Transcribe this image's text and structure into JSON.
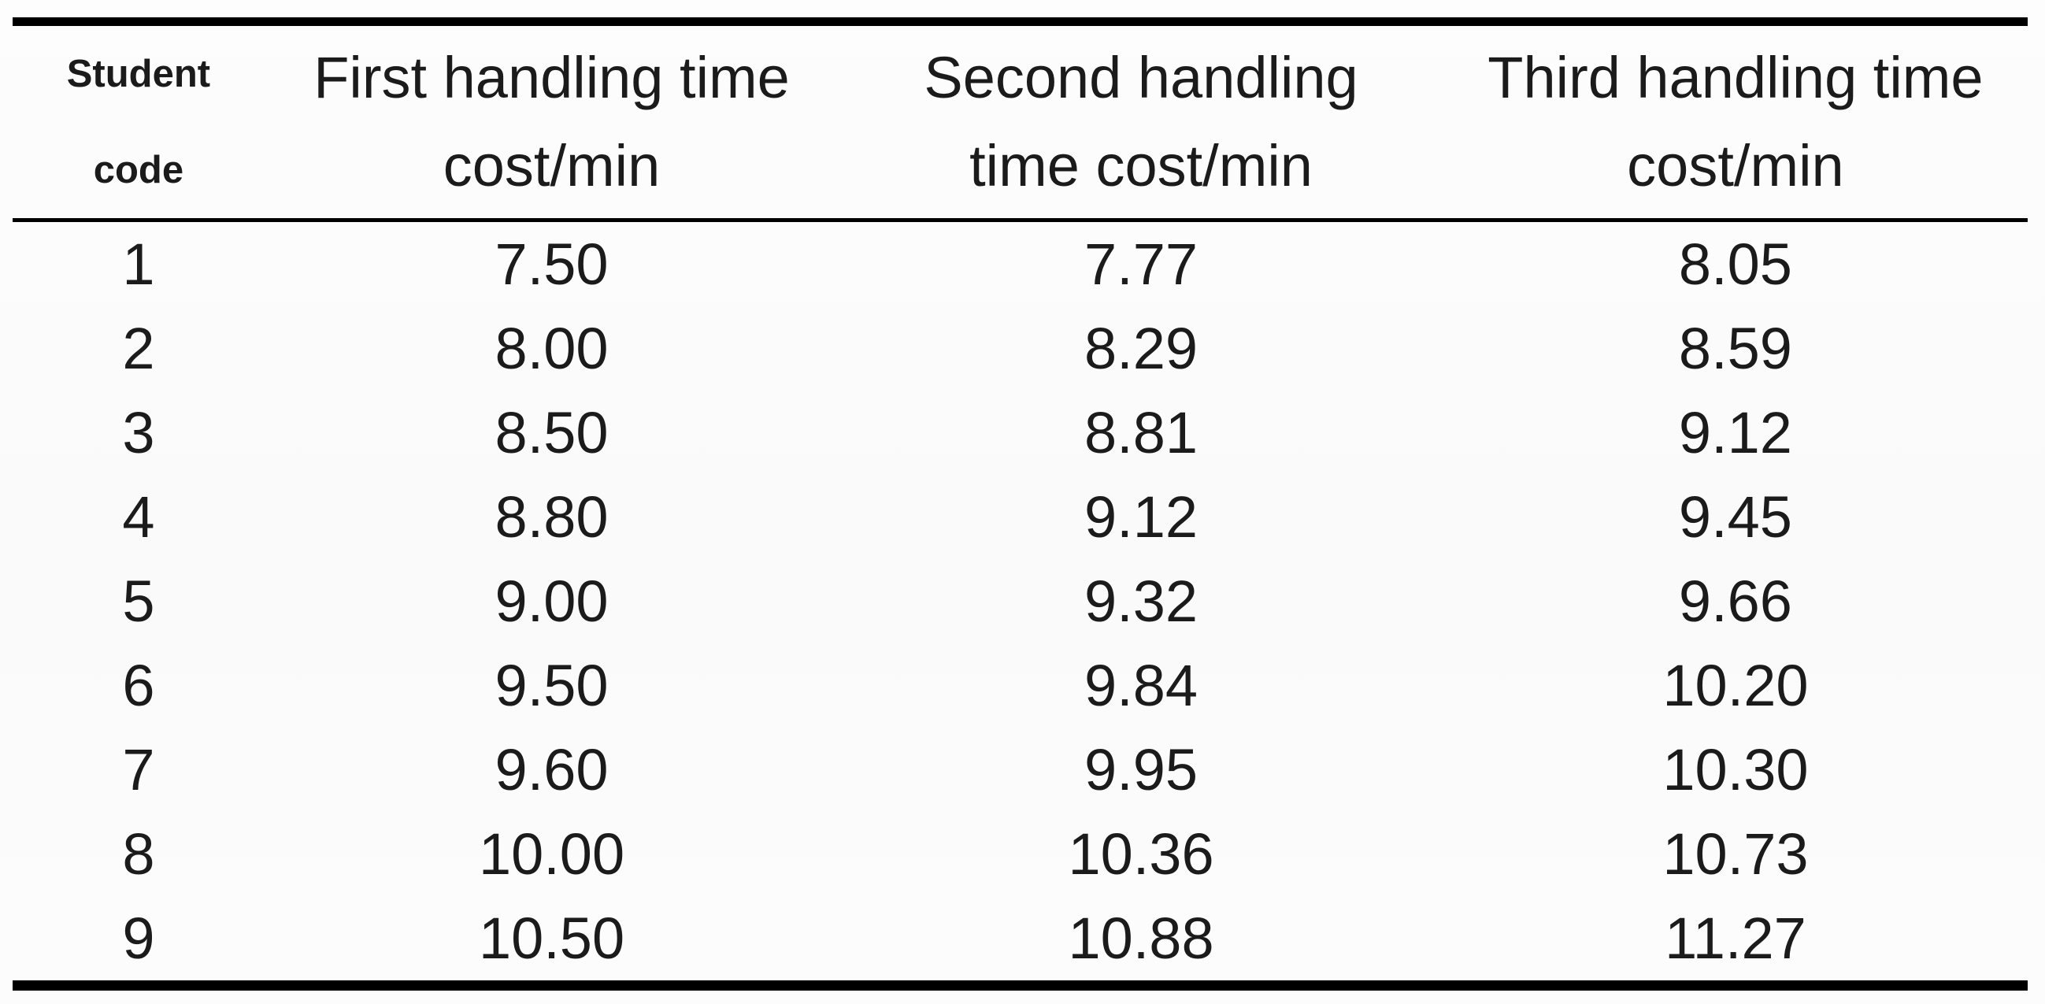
{
  "table": {
    "headers": [
      {
        "line1": "Student",
        "line2": "code"
      },
      {
        "line1": "First handling time",
        "line2": "cost/min"
      },
      {
        "line1": "Second handling",
        "line2": "time cost/min"
      },
      {
        "line1": "Third handling time",
        "line2": "cost/min"
      }
    ],
    "rows": [
      [
        "1",
        "7.50",
        "7.77",
        "8.05"
      ],
      [
        "2",
        "8.00",
        "8.29",
        "8.59"
      ],
      [
        "3",
        "8.50",
        "8.81",
        "9.12"
      ],
      [
        "4",
        "8.80",
        "9.12",
        "9.45"
      ],
      [
        "5",
        "9.00",
        "9.32",
        "9.66"
      ],
      [
        "6",
        "9.50",
        "9.84",
        "10.20"
      ],
      [
        "7",
        "9.60",
        "9.95",
        "10.30"
      ],
      [
        "8",
        "10.00",
        "10.36",
        "10.73"
      ],
      [
        "9",
        "10.50",
        "10.88",
        "11.27"
      ]
    ]
  },
  "colors": {
    "rule": "#000000",
    "text": "#1b1b1b",
    "background": "#fcfcfc"
  }
}
